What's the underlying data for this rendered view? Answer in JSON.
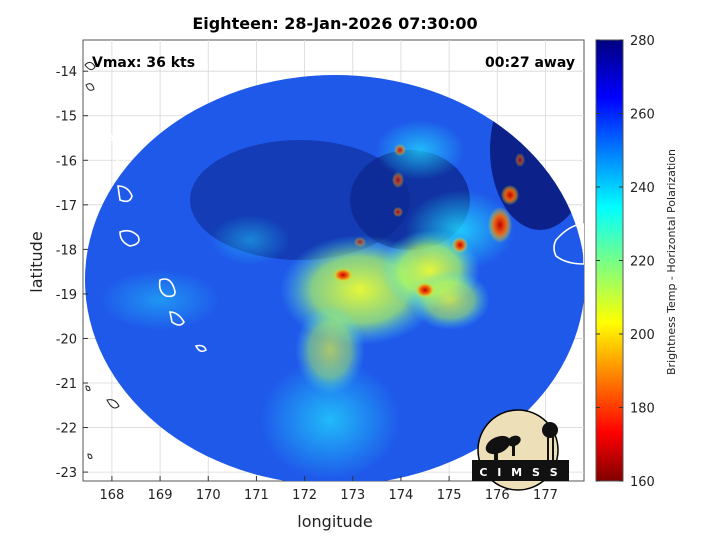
{
  "title": "Eighteen: 28-Jan-2026 07:30:00",
  "xlabel": "longitude",
  "ylabel": "latitude",
  "vmax_text": "Vmax: 36 kts",
  "away_text": "00:27 away",
  "colorbar": {
    "label": "Brightness Temp - Horizontal Polarization",
    "ticks": [
      "280",
      "260",
      "240",
      "220",
      "200",
      "180",
      "160"
    ],
    "min": 160,
    "max": 280
  },
  "x_ticks": [
    "168",
    "169",
    "170",
    "171",
    "172",
    "173",
    "174",
    "175",
    "176",
    "177"
  ],
  "y_ticks": [
    "-14",
    "-15",
    "-16",
    "-17",
    "-18",
    "-19",
    "-20",
    "-21",
    "-22",
    "-23"
  ],
  "logo_text": "C I M S S",
  "chart_data": {
    "type": "heatmap",
    "title": "Eighteen: 28-Jan-2026 07:30:00",
    "xlabel": "longitude",
    "ylabel": "latitude",
    "xlim": [
      167.4,
      177.8
    ],
    "ylim": [
      -23.2,
      -13.3
    ],
    "colorbar_range": [
      160,
      280
    ],
    "grid": true,
    "colormap": "jet",
    "annotations": [
      "Vmax: 36 kts",
      "00:27 away"
    ]
  }
}
